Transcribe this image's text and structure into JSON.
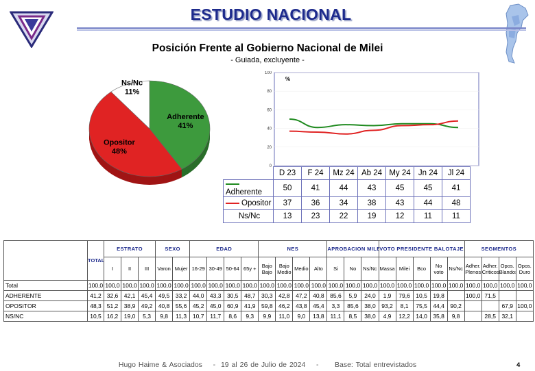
{
  "header": {
    "title": "ESTUDIO NACIONAL"
  },
  "chart_data": [
    {
      "type": "pie",
      "title": "Posición Frente al Gobierno Nacional de Milei",
      "subtitle": "- Guiada, excluyente -",
      "slices": [
        {
          "label": "Adherente",
          "value": 41,
          "value_label": "41%",
          "color": "#3d9a3d"
        },
        {
          "label": "Opositor",
          "value": 48,
          "value_label": "48%",
          "color": "#e02323"
        },
        {
          "label": "Ns/Nc",
          "value": 11,
          "value_label": "11%",
          "color": "#ffffff"
        }
      ]
    },
    {
      "type": "line",
      "ylabel": "%",
      "ylim": [
        0,
        100
      ],
      "yticks": [
        "0",
        "20",
        "40",
        "60",
        "80",
        "100"
      ],
      "categories": [
        "D 23",
        "F 24",
        "Mz 24",
        "Ab 24",
        "My 24",
        "Jn 24",
        "Jl 24"
      ],
      "series": [
        {
          "name": "Adherente",
          "color": "#1f8a1f",
          "values": [
            50,
            41,
            44,
            43,
            45,
            45,
            41
          ]
        },
        {
          "name": "Opositor",
          "color": "#e02323",
          "values": [
            37,
            36,
            34,
            38,
            43,
            44,
            48
          ]
        },
        {
          "name": "Ns/Nc",
          "color": null,
          "values": [
            13,
            23,
            22,
            19,
            12,
            11,
            11
          ]
        }
      ]
    },
    {
      "type": "table",
      "total_header": "TOTAL",
      "groups": [
        {
          "label": "ESTRATO",
          "cols": [
            "I",
            "II",
            "III"
          ]
        },
        {
          "label": "SEXO",
          "cols": [
            "Varon",
            "Mujer"
          ]
        },
        {
          "label": "EDAD",
          "cols": [
            "16-29",
            "30-49",
            "50-64",
            "65y +"
          ]
        },
        {
          "label": "NES",
          "cols": [
            "Bajo Bajo",
            "Bajo Medio",
            "Medio",
            "Alto"
          ]
        },
        {
          "label": "APROBACION MILEI",
          "cols": [
            "Si",
            "No",
            "Ns/Nc"
          ]
        },
        {
          "label": "VOTO PRESIDENTE BALOTAJE",
          "cols": [
            "Massa",
            "Milei",
            "Bco",
            "No voto",
            "Ns/Nc"
          ]
        },
        {
          "label": "SEGMENTOS",
          "cols": [
            "Adher. Plenos",
            "Adher. Criticos",
            "Opos. Blandos",
            "Opos. Duro"
          ]
        }
      ],
      "rows": [
        {
          "label": "Total",
          "values": [
            "100,0",
            "100,0",
            "100,0",
            "100,0",
            "100,0",
            "100,0",
            "100,0",
            "100,0",
            "100,0",
            "100,0",
            "100,0",
            "100,0",
            "100,0",
            "100,0",
            "100,0",
            "100,0",
            "100,0",
            "100,0",
            "100,0",
            "100,0",
            "100,0",
            "100,0",
            "100,0",
            "100,0",
            "100,0",
            "100,0"
          ]
        },
        {
          "label": "ADHERENTE",
          "values": [
            "41,2",
            "32,6",
            "42,1",
            "45,4",
            "49,5",
            "33,2",
            "44,0",
            "43,3",
            "30,5",
            "48,7",
            "30,3",
            "42,8",
            "47,2",
            "40,8",
            "85,6",
            "5,9",
            "24,0",
            "1,9",
            "79,6",
            "10,5",
            "19,8",
            "",
            "100,0",
            "71,5",
            "",
            ""
          ]
        },
        {
          "label": "OPOSITOR",
          "values": [
            "48,3",
            "51,2",
            "38,9",
            "49,2",
            "40,8",
            "55,6",
            "45,2",
            "45,0",
            "60,9",
            "41,9",
            "59,8",
            "46,2",
            "43,8",
            "45,4",
            "3,3",
            "85,6",
            "38,0",
            "93,2",
            "8,1",
            "75,5",
            "44,4",
            "90,2",
            "",
            "",
            "67,9",
            "100,0"
          ]
        },
        {
          "label": "NS/NC",
          "values": [
            "10,5",
            "16,2",
            "19,0",
            "5,3",
            "9,8",
            "11,3",
            "10,7",
            "11,7",
            "8,6",
            "9,3",
            "9,9",
            "11,0",
            "9,0",
            "13,8",
            "11,1",
            "8,5",
            "38,0",
            "4,9",
            "12,2",
            "14,0",
            "35,8",
            "9,8",
            "",
            "28,5",
            "32,1",
            ""
          ]
        }
      ]
    }
  ],
  "footer": {
    "author": "Hugo Haime & Asociados",
    "sep": "-",
    "date": "19 al 26 de Julio  de 2024",
    "sep2": "-",
    "base": "Base: Total entrevistados"
  },
  "page_number": "4",
  "icons": {
    "logo": "triangle-logo-icon",
    "map": "argentina-map-icon"
  }
}
